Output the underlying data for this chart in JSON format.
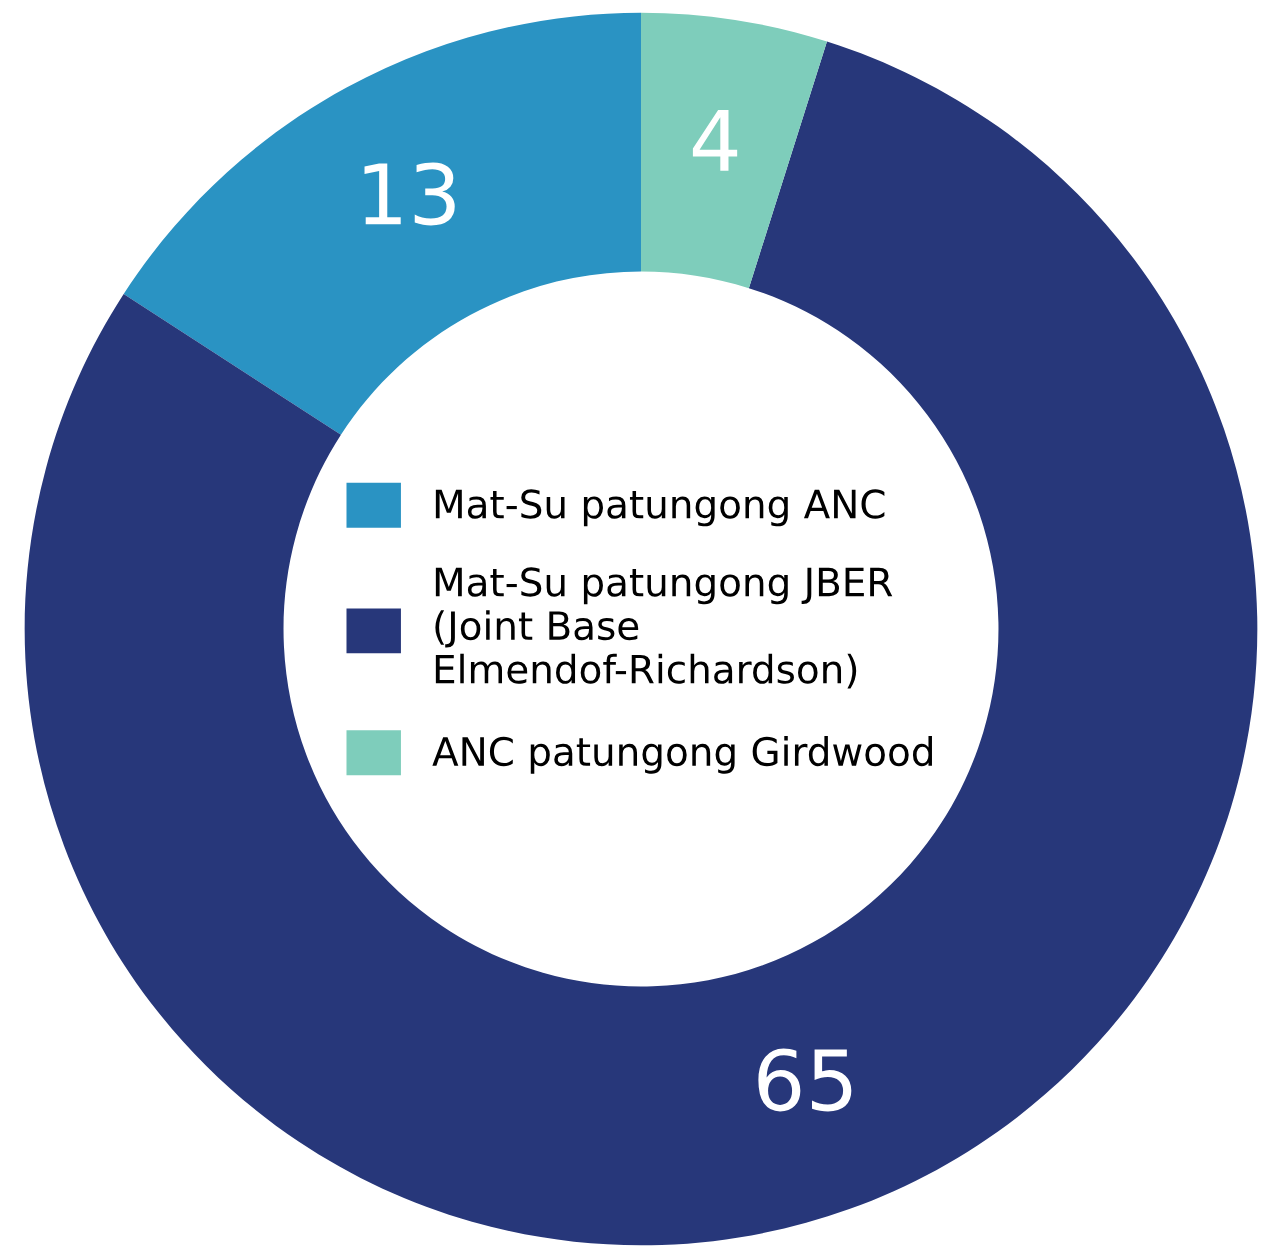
{
  "chart_data": {
    "type": "donut",
    "categories": [
      "Mat-Su patungong ANC",
      "Mat-Su patungong JBER (Joint Base Elmendof-Richardson)",
      "ANC patungong Girdwood"
    ],
    "values": [
      13,
      65,
      4
    ],
    "colors": [
      "#2a93c3",
      "#27377a",
      "#7ecdbb"
    ],
    "data_labels": true,
    "legend": "center"
  }
}
